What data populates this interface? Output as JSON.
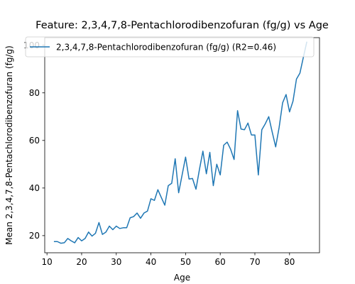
{
  "chart_data": {
    "type": "line",
    "title": "Feature: 2,3,4,7,8-Pentachlorodibenzofuran (fg/g) vs Age",
    "xlabel": "Age",
    "ylabel": "Mean 2,3,4,7,8-Pentachlorodibenzofuran (fg/g)",
    "xlim": [
      9.35,
      88.65
    ],
    "ylim": [
      12.8,
      103.2
    ],
    "xticks": [
      10,
      20,
      30,
      40,
      50,
      60,
      70,
      80
    ],
    "yticks": [
      20,
      40,
      60,
      80,
      100
    ],
    "grid": false,
    "legend": {
      "location": "upper-left",
      "entries": [
        "2,3,4,7,8-Pentachlorodibenzofuran (fg/g) (R2=0.46)"
      ]
    },
    "series": [
      {
        "name": "2,3,4,7,8-Pentachlorodibenzofuran (fg/g) (R2=0.46)",
        "color": "#1f77b4",
        "x": [
          12,
          13,
          14,
          15,
          16,
          17,
          18,
          19,
          20,
          21,
          22,
          23,
          24,
          25,
          26,
          27,
          28,
          29,
          30,
          31,
          32,
          33,
          34,
          35,
          36,
          37,
          38,
          39,
          40,
          41,
          42,
          43,
          44,
          45,
          46,
          47,
          48,
          49,
          50,
          51,
          52,
          53,
          54,
          55,
          56,
          57,
          58,
          59,
          60,
          61,
          62,
          63,
          64,
          65,
          66,
          67,
          68,
          69,
          70,
          71,
          72,
          73,
          74,
          75,
          76,
          77,
          78,
          79,
          80,
          81,
          82,
          83,
          84,
          85
        ],
        "y": [
          17.5,
          17.5,
          16.8,
          17.0,
          18.8,
          17.8,
          17.0,
          19.2,
          17.8,
          18.8,
          21.5,
          19.8,
          21.0,
          25.5,
          20.5,
          21.5,
          24.0,
          22.5,
          24.0,
          23.0,
          23.3,
          23.3,
          27.5,
          28.0,
          29.5,
          27.3,
          29.5,
          30.3,
          35.5,
          34.8,
          39.3,
          36.0,
          32.8,
          41.0,
          42.0,
          52.3,
          38.0,
          45.5,
          53.0,
          43.8,
          44.0,
          39.5,
          47.8,
          55.5,
          46.0,
          55.0,
          41.0,
          50.0,
          45.5,
          58.0,
          59.3,
          56.3,
          52.0,
          72.5,
          64.8,
          64.5,
          67.3,
          62.3,
          62.3,
          45.5,
          64.5,
          67.0,
          70.0,
          63.5,
          57.3,
          65.5,
          75.8,
          79.3,
          72.0,
          76.5,
          85.8,
          88.3,
          95.0,
          101.5
        ]
      }
    ]
  }
}
